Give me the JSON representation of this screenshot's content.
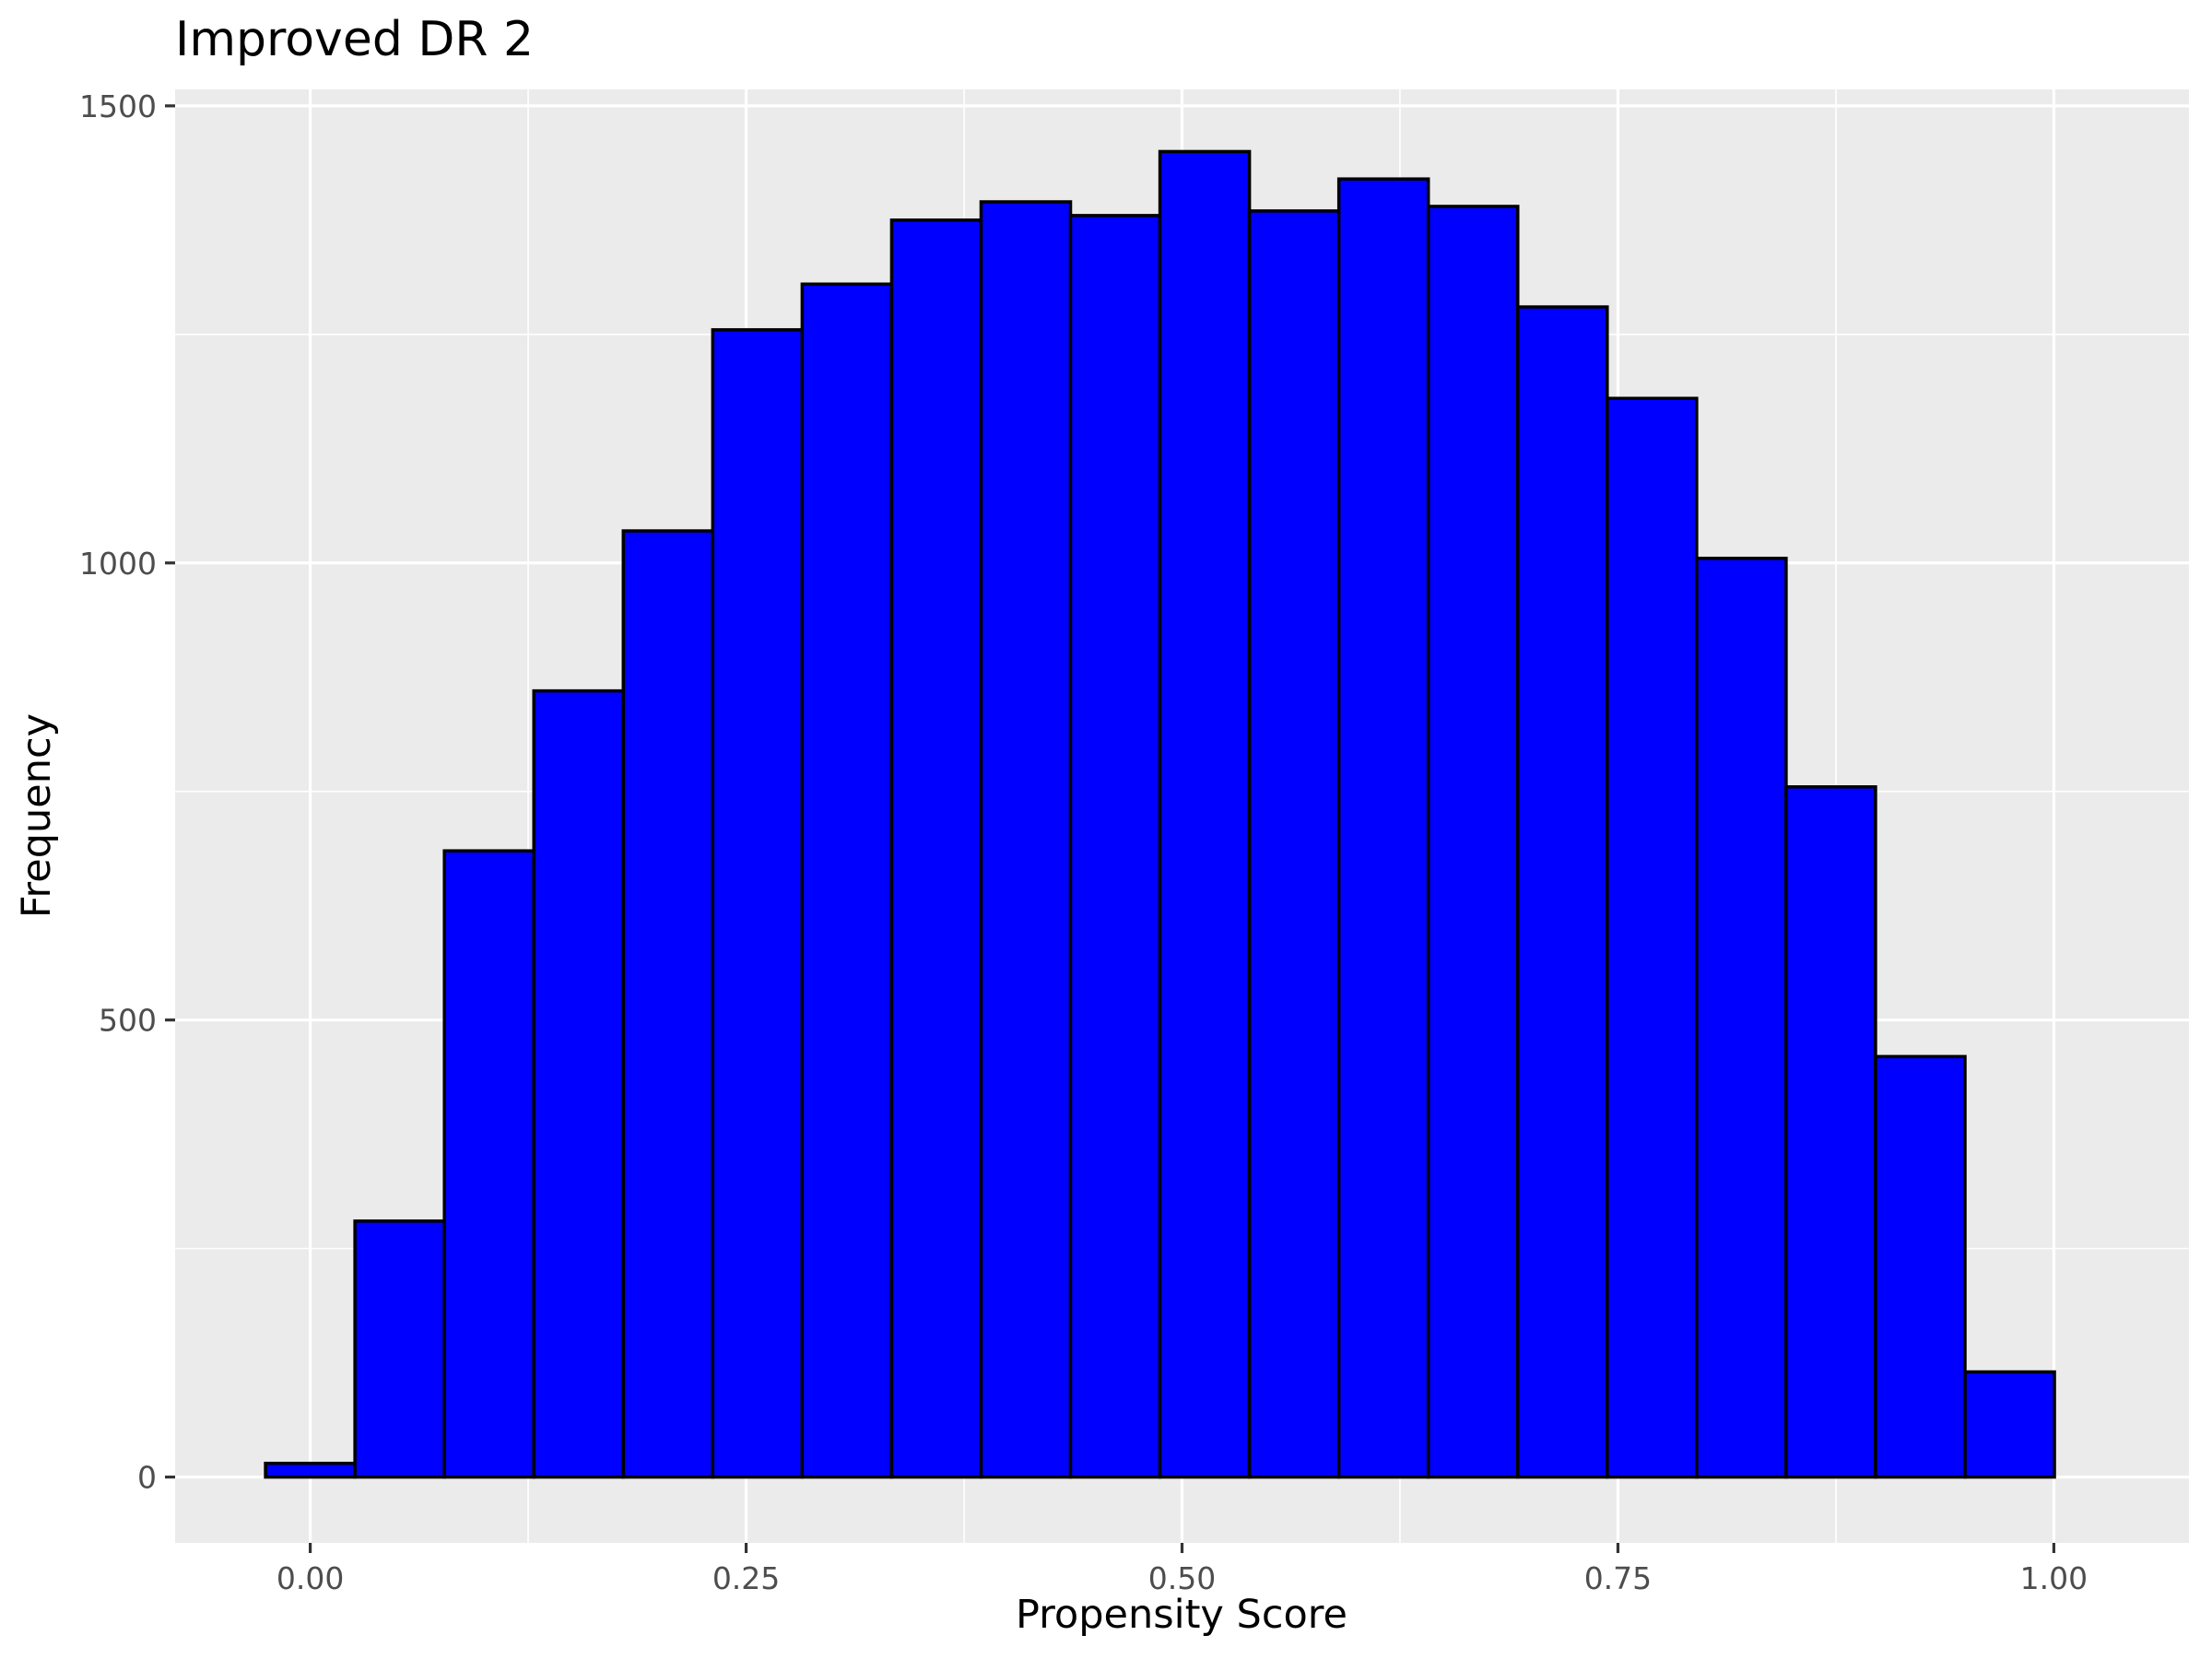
{
  "chart_data": {
    "type": "bar",
    "title": "Improved DR 2",
    "xlabel": "Propensity Score",
    "ylabel": "Frequency",
    "bar_color": "#0000ff",
    "bar_outline_color": "#000000",
    "panel_color": "#ebebeb",
    "grid": true,
    "legend": "none",
    "xlim": [
      -0.0775,
      1.0775
    ],
    "ylim": [
      -72,
      1518
    ],
    "x_ticks": [
      0.0,
      0.25,
      0.5,
      0.75,
      1.0
    ],
    "x_tick_labels": [
      "0.00",
      "0.25",
      "0.50",
      "0.75",
      "1.00"
    ],
    "y_ticks": [
      0,
      500,
      1000,
      1500
    ],
    "y_tick_labels": [
      "0",
      "500",
      "1000",
      "1500"
    ],
    "bin_width": 0.0513,
    "bin_centers": [
      0.0,
      0.0513,
      0.1026,
      0.1539,
      0.2052,
      0.2565,
      0.3078,
      0.3591,
      0.4104,
      0.4617,
      0.513,
      0.5643,
      0.6156,
      0.6669,
      0.7182,
      0.7695,
      0.8208,
      0.8721,
      0.9234,
      0.9747
    ],
    "values": [
      15,
      280,
      685,
      860,
      1035,
      1255,
      1305,
      1375,
      1395,
      1380,
      1450,
      1385,
      1420,
      1390,
      1280,
      1180,
      1005,
      755,
      460,
      115
    ]
  }
}
